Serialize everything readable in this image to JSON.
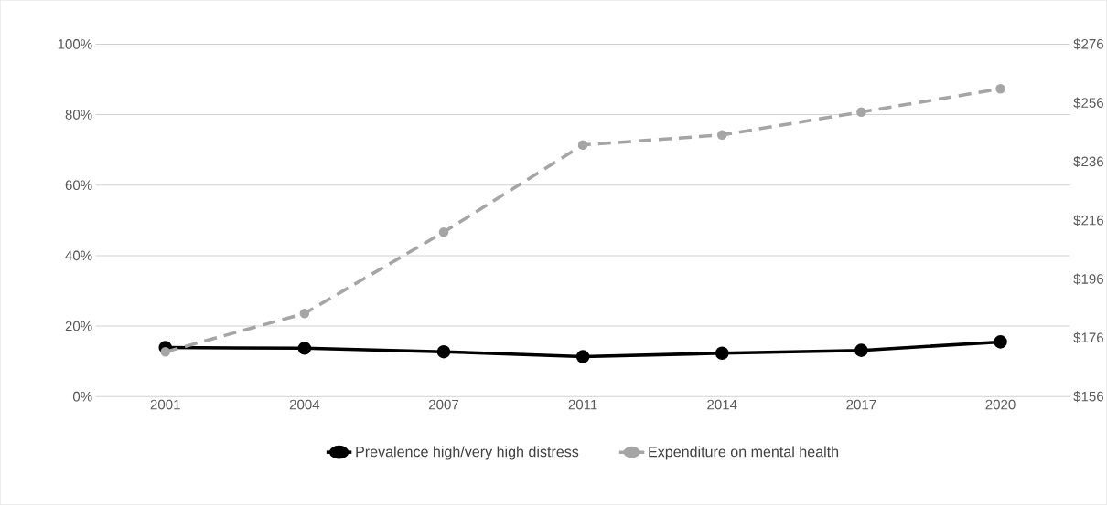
{
  "chart_data": {
    "type": "line",
    "categories": [
      "2001",
      "2004",
      "2007",
      "2011",
      "2014",
      "2017",
      "2020"
    ],
    "series": [
      {
        "name": "Prevalence high/very high distress",
        "color": "#000000",
        "values": [
          13.9,
          13.7,
          12.7,
          11.3,
          12.3,
          13.1,
          15.5
        ],
        "marker": "circle",
        "line_style": "solid"
      },
      {
        "name": "Expenditure on mental health",
        "color": "#a5a5a5",
        "values": [
          171.2,
          184.3,
          212,
          241.7,
          245.1,
          252.9,
          260.8
        ],
        "axis": "y2",
        "marker": "circle",
        "line_style": "dashed"
      }
    ],
    "ylim": [
      0,
      100
    ],
    "yticks": [
      {
        "value": 0,
        "label": "0%"
      },
      {
        "value": 20,
        "label": "20%"
      },
      {
        "value": 40,
        "label": "40%"
      },
      {
        "value": 60,
        "label": "60%"
      },
      {
        "value": 80,
        "label": "80%"
      },
      {
        "value": 100,
        "label": "100%"
      }
    ],
    "y2lim": [
      156,
      276
    ],
    "y2ticks": [
      {
        "value": 156,
        "label": "$156"
      },
      {
        "value": 176,
        "label": "$176"
      },
      {
        "value": 196,
        "label": "$196"
      },
      {
        "value": 216,
        "label": "$216"
      },
      {
        "value": 236,
        "label": "$236"
      },
      {
        "value": 256,
        "label": "$256"
      },
      {
        "value": 276,
        "label": "$276"
      }
    ],
    "grid": "y",
    "legend": "bottom"
  }
}
